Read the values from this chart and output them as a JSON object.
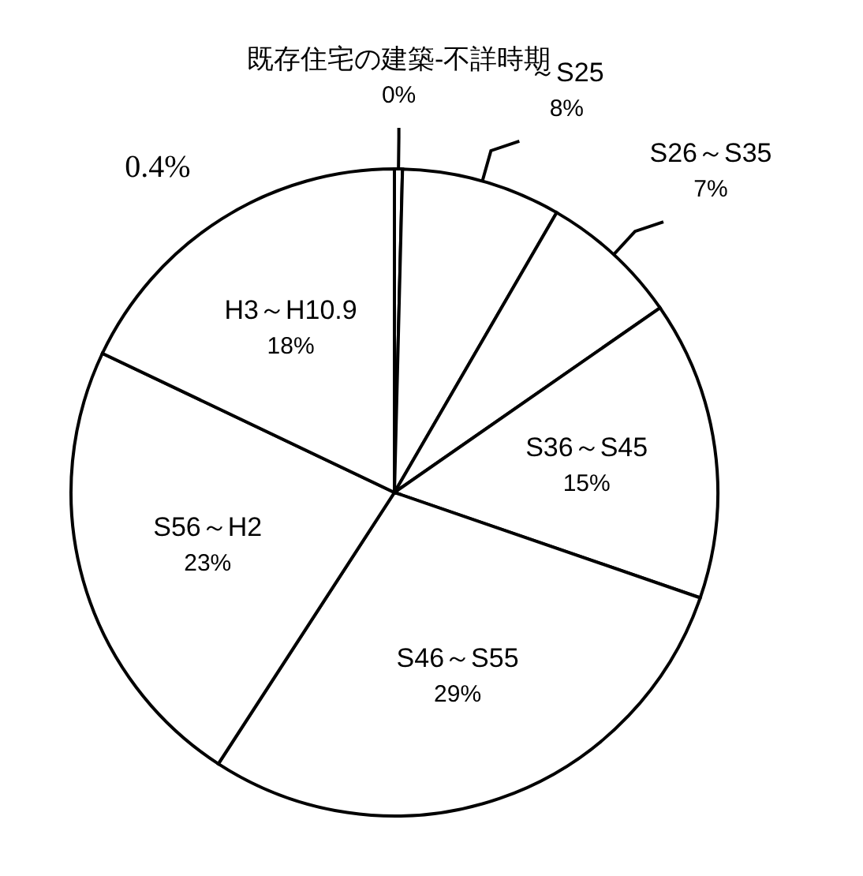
{
  "chart_data": {
    "type": "pie",
    "categories": [
      "既存住宅の建築-不詳時期",
      "～S25",
      "S26～S35",
      "S36～S45",
      "S46～S55",
      "S56～H2",
      "H3～H10.9"
    ],
    "values": [
      0.4,
      8,
      7,
      15,
      29,
      23,
      18
    ],
    "value_labels": [
      "0%",
      "8%",
      "7%",
      "15%",
      "29%",
      "23%",
      "18%"
    ],
    "colors": [
      "#ffffff",
      "#ffffff",
      "#ffffff",
      "#ffffff",
      "#ffffff",
      "#ffffff",
      "#ffffff"
    ],
    "annotations": [
      "0.4%"
    ],
    "legend": false
  }
}
